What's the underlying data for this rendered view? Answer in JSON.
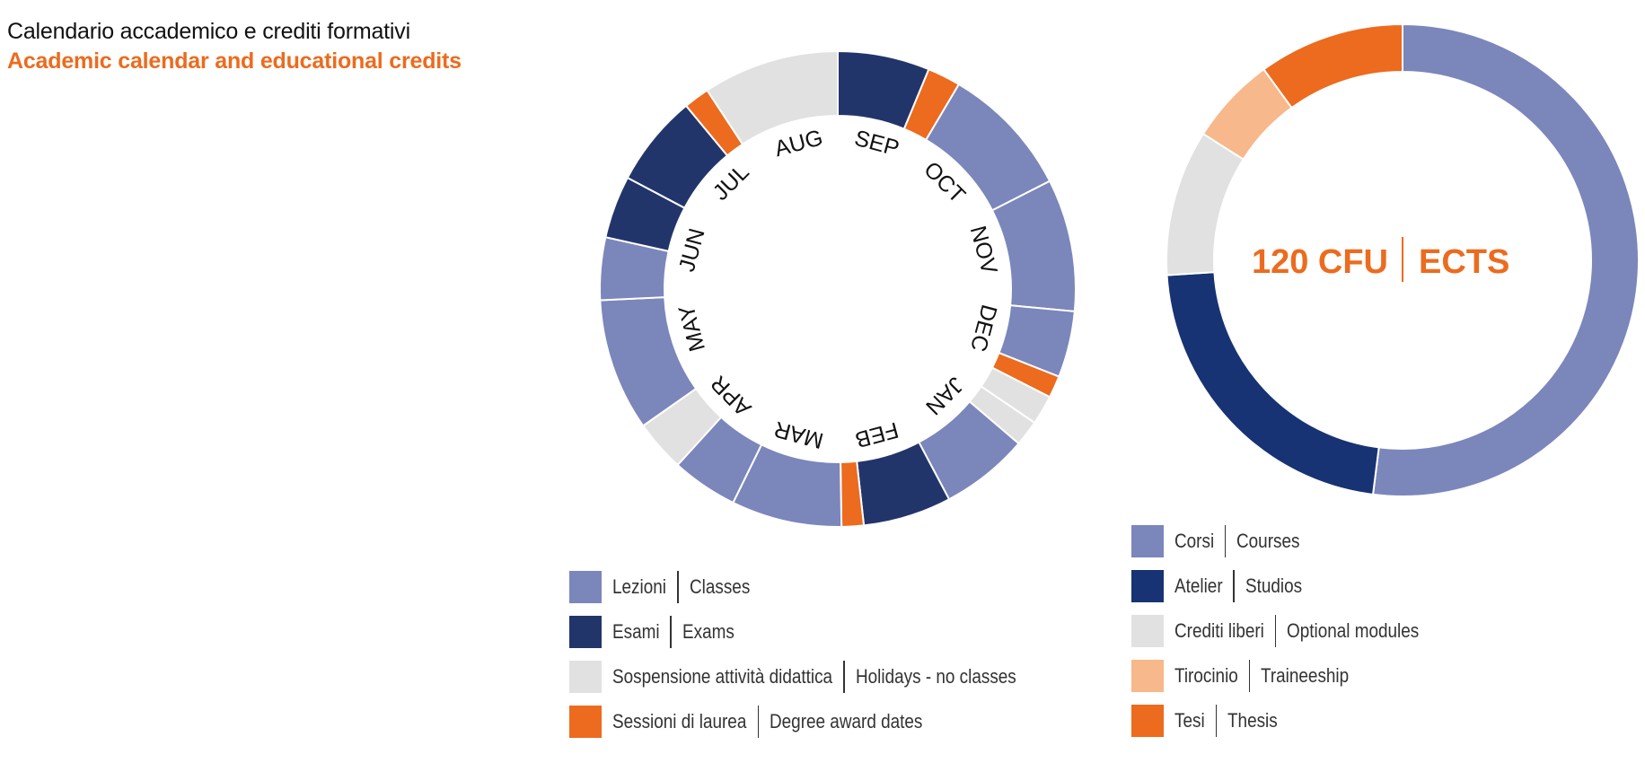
{
  "title": {
    "it": "Calendario accademico e crediti formativi",
    "en": "Academic calendar and educational credits"
  },
  "colors": {
    "classes": "#7b86bb",
    "exams": "#22356b",
    "holidays": "#e1e1e1",
    "degree": "#ec6b1e",
    "atelier": "#173374",
    "traineeship": "#f7b88b",
    "accent": "#ec6b1e"
  },
  "chart_data": [
    {
      "type": "pie",
      "variant": "donut",
      "months": [
        "SEP",
        "OCT",
        "NOV",
        "DEC",
        "JAN",
        "FEB",
        "MAR",
        "APR",
        "MAY",
        "JUN",
        "JUL",
        "AUG"
      ],
      "start_angle_deg": 0,
      "segments_deg": [
        {
          "category": "exams",
          "value": 25
        },
        {
          "category": "degree",
          "value": 9
        },
        {
          "category": "classes",
          "value": 36
        },
        {
          "category": "classes",
          "value": 36
        },
        {
          "category": "classes",
          "value": 18
        },
        {
          "category": "degree",
          "value": 6
        },
        {
          "category": "holidays",
          "value": 8
        },
        {
          "category": "holidays",
          "value": 7
        },
        {
          "category": "classes",
          "value": 24
        },
        {
          "category": "exams",
          "value": 24
        },
        {
          "category": "degree",
          "value": 6
        },
        {
          "category": "classes",
          "value": 30
        },
        {
          "category": "classes",
          "value": 18
        },
        {
          "category": "holidays",
          "value": 14
        },
        {
          "category": "classes",
          "value": 36
        },
        {
          "category": "classes",
          "value": 17
        },
        {
          "category": "exams",
          "value": 17
        },
        {
          "category": "exams",
          "value": 25
        },
        {
          "category": "degree",
          "value": 7
        },
        {
          "category": "holidays",
          "value": 37
        }
      ],
      "legend": [
        {
          "category": "classes",
          "it": "Lezioni",
          "en": "Classes"
        },
        {
          "category": "exams",
          "it": "Esami",
          "en": "Exams"
        },
        {
          "category": "holidays",
          "it": "Sospensione attività didattica",
          "en": "Holidays - no classes"
        },
        {
          "category": "degree",
          "it": "Sessioni di laurea",
          "en": "Degree award dates"
        }
      ]
    },
    {
      "type": "pie",
      "variant": "donut",
      "center_label": {
        "left": "120 CFU",
        "right": "ECTS"
      },
      "start_angle_deg": 0,
      "segments": [
        {
          "category": "classes",
          "value": 52
        },
        {
          "category": "atelier",
          "value": 22
        },
        {
          "category": "holidays",
          "value": 10
        },
        {
          "category": "traineeship",
          "value": 6
        },
        {
          "category": "degree",
          "value": 10
        }
      ],
      "legend": [
        {
          "category": "classes",
          "it": "Corsi",
          "en": "Courses"
        },
        {
          "category": "atelier",
          "it": "Atelier",
          "en": "Studios"
        },
        {
          "category": "holidays",
          "it": "Crediti liberi",
          "en": "Optional modules"
        },
        {
          "category": "traineeship",
          "it": "Tirocinio",
          "en": "Traineeship"
        },
        {
          "category": "degree",
          "it": "Tesi",
          "en": "Thesis"
        }
      ]
    }
  ]
}
